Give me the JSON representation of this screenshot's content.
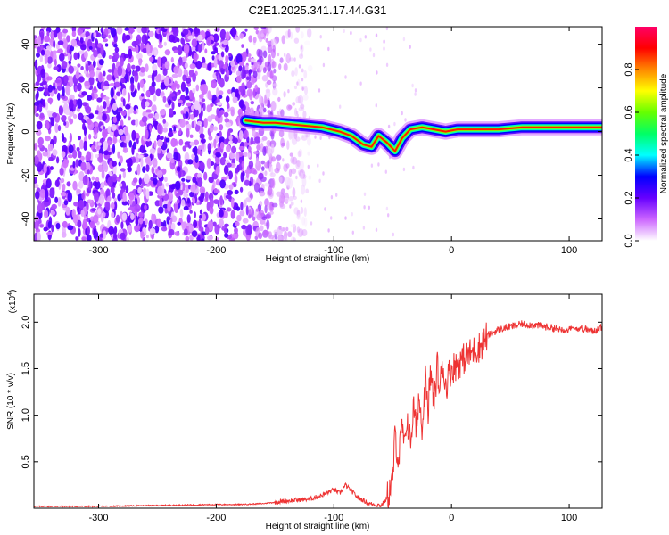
{
  "title": "C2E1.2025.341.17.44.G31",
  "chart_data": [
    {
      "type": "heatmap",
      "xlabel": "Height of straight line (km)",
      "ylabel": "Frequency (Hz)",
      "xlim": [
        -355,
        128
      ],
      "ylim": [
        -50,
        48
      ],
      "xticks": [
        -300,
        -200,
        -100,
        0,
        100
      ],
      "yticks": [
        -40,
        -20,
        0,
        20,
        40
      ],
      "colorbar": {
        "label": "Normalized spectral amplitude",
        "range": [
          0,
          1
        ],
        "ticks": [
          "0.0",
          "0.2",
          "0.4",
          "0.6",
          "0.8"
        ],
        "colors": [
          "#ffffff",
          "#cc66ff",
          "#6600ff",
          "#0000ff",
          "#00ffff",
          "#00ff66",
          "#66ff00",
          "#ffff00",
          "#ff8800",
          "#ff0000",
          "#ff0066"
        ]
      },
      "noise_region_x": [
        -355,
        -150
      ],
      "ridge": {
        "x": [
          -175,
          -160,
          -150,
          -130,
          -110,
          -95,
          -85,
          -75,
          -68,
          -62,
          -55,
          -48,
          -42,
          -35,
          -25,
          -15,
          -5,
          5,
          20,
          40,
          60,
          80,
          100,
          128
        ],
        "y": [
          5,
          4,
          4,
          3,
          2,
          0,
          -2,
          -6,
          -7,
          -2,
          -5,
          -9,
          -3,
          1,
          2,
          1,
          0,
          1,
          1,
          1,
          2,
          2,
          2,
          2
        ]
      }
    },
    {
      "type": "line",
      "xlabel": "Height of straight line (km)",
      "ylabel": "SNR (10 * v/v)",
      "y_multiplier": "(x10",
      "y_multiplier_exp": "4",
      "y_multiplier_close": ")",
      "xlim": [
        -355,
        128
      ],
      "ylim": [
        0,
        2.3
      ],
      "xticks": [
        -300,
        -200,
        -100,
        0,
        100
      ],
      "yticks": [
        0.5,
        1.0,
        1.5,
        2.0
      ],
      "ytick_labels": [
        "0.5",
        "1.0",
        "1.5",
        "2.0"
      ],
      "color": "#ee3333",
      "series": [
        {
          "x": [
            -355,
            -300,
            -250,
            -200,
            -180,
            -160,
            -140,
            -120,
            -110,
            -100,
            -95,
            -90,
            -80,
            -70,
            -60,
            -55,
            -50,
            -48,
            -45,
            -42,
            -40,
            -38,
            -35,
            -32,
            -30,
            -28,
            -25,
            -22,
            -20,
            -18,
            -15,
            -12,
            -10,
            -8,
            -5,
            -2,
            0,
            5,
            10,
            15,
            20,
            25,
            30,
            40,
            50,
            60,
            70,
            80,
            90,
            100,
            110,
            120,
            128
          ],
          "y": [
            0.02,
            0.02,
            0.03,
            0.04,
            0.04,
            0.05,
            0.08,
            0.1,
            0.14,
            0.2,
            0.16,
            0.25,
            0.12,
            0.05,
            0.03,
            0.1,
            0.3,
            0.8,
            0.5,
            0.9,
            0.6,
            1.0,
            0.7,
            1.1,
            0.8,
            1.2,
            0.9,
            1.4,
            1.0,
            1.5,
            1.1,
            1.55,
            1.2,
            1.6,
            1.3,
            1.45,
            1.5,
            1.55,
            1.6,
            1.65,
            1.7,
            1.75,
            1.85,
            1.92,
            1.95,
            1.98,
            1.97,
            1.95,
            1.93,
            1.92,
            1.94,
            1.9,
            1.95
          ]
        }
      ]
    }
  ]
}
